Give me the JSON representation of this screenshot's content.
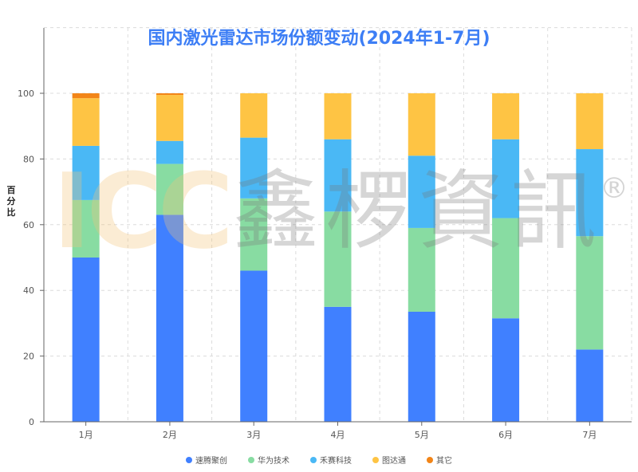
{
  "chart_data": {
    "type": "bar",
    "stacked": true,
    "title": "国内激光雷达市场份额变动(2024年1-7月)",
    "ylabel": "百分比",
    "xlabel": "",
    "ylim": [
      0,
      100
    ],
    "yticks": [
      0,
      20,
      40,
      60,
      80,
      100
    ],
    "categories": [
      "1月",
      "2月",
      "3月",
      "4月",
      "5月",
      "6月",
      "7月"
    ],
    "series": [
      {
        "name": "速腾聚创",
        "color": "#4080ff",
        "values": [
          50,
          63,
          46,
          35,
          33.5,
          31.5,
          22
        ]
      },
      {
        "name": "华为技术",
        "color": "#88dca2",
        "values": [
          17.5,
          15.5,
          22,
          29,
          25.5,
          30.5,
          34.5
        ]
      },
      {
        "name": "禾赛科技",
        "color": "#4ab8f5",
        "values": [
          16.5,
          7,
          18.5,
          22,
          22,
          24,
          26.5
        ]
      },
      {
        "name": "图达通",
        "color": "#fec444",
        "values": [
          14.5,
          14,
          13.5,
          14,
          19,
          14,
          17
        ]
      },
      {
        "name": "其它",
        "color": "#f28518",
        "values": [
          1.5,
          0.5,
          0,
          0,
          0,
          0,
          0
        ]
      }
    ],
    "legend_position": "bottom",
    "grid": true
  },
  "watermark": {
    "latin": "ICC",
    "chinese": "鑫椤資訊",
    "registered": "®"
  }
}
